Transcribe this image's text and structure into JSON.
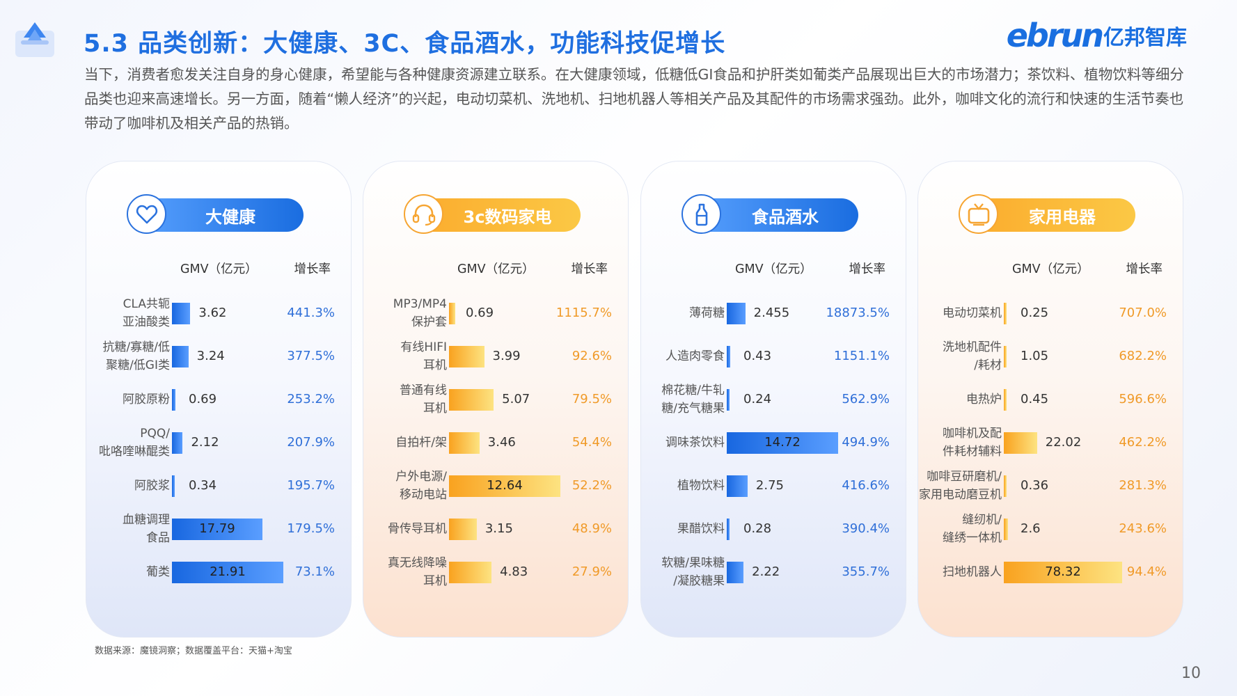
{
  "page": {
    "title": "5.3 品类创新：大健康、3C、食品酒水，功能科技促增长",
    "brand_en": "ebrun",
    "brand_cn": "亿邦智库",
    "intro": "当下，消费者愈发关注自身的身心健康，希望能与各种健康资源建立联系。在大健康领域，低糖低GI食品和护肝类如葡类产品展现出巨大的市场潜力；茶饮料、植物饮料等细分品类也迎来高速增长。另一方面，随着“懒人经济”的兴起，电动切菜机、洗地机、扫地机器人等相关产品及其配件的市场需求强劲。此外，咖啡文化的流行和快速的生活节奏也带动了咖啡机及相关产品的热销。",
    "source": "数据来源：魔镜洞察；数据覆盖平台：天猫+淘宝",
    "page_number": "10"
  },
  "chart_data": [
    {
      "type": "bar",
      "title": "大健康",
      "icon": "heart-icon",
      "theme": "blue",
      "value_label": "GMV（亿元）",
      "rate_label": "增长率",
      "max": 21.91,
      "rows": [
        {
          "category": "CLA共轭\n亚油酸类",
          "gmv": 3.62,
          "gmv_text": "3.62",
          "rate": "441.3%"
        },
        {
          "category": "抗糖/寡糖/低\n聚糖/低GI类",
          "gmv": 3.24,
          "gmv_text": "3.24",
          "rate": "377.5%"
        },
        {
          "category": "阿胶原粉",
          "gmv": 0.69,
          "gmv_text": "0.69",
          "rate": "253.2%"
        },
        {
          "category": "PQQ/\n吡咯喹啉醌类",
          "gmv": 2.12,
          "gmv_text": "2.12",
          "rate": "207.9%"
        },
        {
          "category": "阿胶浆",
          "gmv": 0.34,
          "gmv_text": "0.34",
          "rate": "195.7%"
        },
        {
          "category": "血糖调理\n食品",
          "gmv": 17.79,
          "gmv_text": "17.79",
          "rate": "179.5%"
        },
        {
          "category": "葡类",
          "gmv": 21.91,
          "gmv_text": "21.91",
          "rate": "73.1%"
        }
      ]
    },
    {
      "type": "bar",
      "title": "3c数码家电",
      "icon": "headphones-icon",
      "theme": "orange",
      "value_label": "GMV（亿元）",
      "rate_label": "增长率",
      "max": 12.64,
      "rows": [
        {
          "category": "MP3/MP4\n保护套",
          "gmv": 0.69,
          "gmv_text": "0.69",
          "rate": "1115.7%"
        },
        {
          "category": "有线HIFI\n耳机",
          "gmv": 3.99,
          "gmv_text": "3.99",
          "rate": "92.6%"
        },
        {
          "category": "普通有线\n耳机",
          "gmv": 5.07,
          "gmv_text": "5.07",
          "rate": "79.5%"
        },
        {
          "category": "自拍杆/架",
          "gmv": 3.46,
          "gmv_text": "3.46",
          "rate": "54.4%"
        },
        {
          "category": "户外电源/\n移动电站",
          "gmv": 12.64,
          "gmv_text": "12.64",
          "rate": "52.2%"
        },
        {
          "category": "骨传导耳机",
          "gmv": 3.15,
          "gmv_text": "3.15",
          "rate": "48.9%"
        },
        {
          "category": "真无线降噪\n耳机",
          "gmv": 4.83,
          "gmv_text": "4.83",
          "rate": "27.9%"
        }
      ]
    },
    {
      "type": "bar",
      "title": "食品酒水",
      "icon": "bottle-icon",
      "theme": "blue",
      "value_label": "GMV（亿元）",
      "rate_label": "增长率",
      "max": 14.72,
      "rows": [
        {
          "category": "薄荷糖",
          "gmv": 2.455,
          "gmv_text": "2.455",
          "rate": "18873.5%"
        },
        {
          "category": "人造肉零食",
          "gmv": 0.43,
          "gmv_text": "0.43",
          "rate": "1151.1%"
        },
        {
          "category": "棉花糖/牛轧\n糖/充气糖果",
          "gmv": 0.24,
          "gmv_text": "0.24",
          "rate": "562.9%"
        },
        {
          "category": "调味茶饮料",
          "gmv": 14.72,
          "gmv_text": "14.72",
          "rate": "494.9%"
        },
        {
          "category": "植物饮料",
          "gmv": 2.75,
          "gmv_text": "2.75",
          "rate": "416.6%"
        },
        {
          "category": "果醋饮料",
          "gmv": 0.28,
          "gmv_text": "0.28",
          "rate": "390.4%"
        },
        {
          "category": "软糖/果味糖\n/凝胶糖果",
          "gmv": 2.22,
          "gmv_text": "2.22",
          "rate": "355.7%"
        }
      ]
    },
    {
      "type": "bar",
      "title": "家用电器",
      "icon": "tv-icon",
      "theme": "orange",
      "value_label": "GMV（亿元）",
      "rate_label": "增长率",
      "max": 78.32,
      "rows": [
        {
          "category": "电动切菜机",
          "gmv": 0.25,
          "gmv_text": "0.25",
          "rate": "707.0%"
        },
        {
          "category": "洗地机配件\n/耗材",
          "gmv": 1.05,
          "gmv_text": "1.05",
          "rate": "682.2%"
        },
        {
          "category": "电热炉",
          "gmv": 0.45,
          "gmv_text": "0.45",
          "rate": "596.6%"
        },
        {
          "category": "咖啡机及配\n件耗材辅料",
          "gmv": 22.02,
          "gmv_text": "22.02",
          "rate": "462.2%"
        },
        {
          "category": "咖啡豆研磨机/\n家用电动磨豆机",
          "gmv": 0.36,
          "gmv_text": "0.36",
          "rate": "281.3%"
        },
        {
          "category": "缝纫机/\n缝绣一体机",
          "gmv": 2.6,
          "gmv_text": "2.6",
          "rate": "243.6%"
        },
        {
          "category": "扫地机器人",
          "gmv": 78.32,
          "gmv_text": "78.32",
          "rate": "94.4%"
        }
      ]
    }
  ]
}
